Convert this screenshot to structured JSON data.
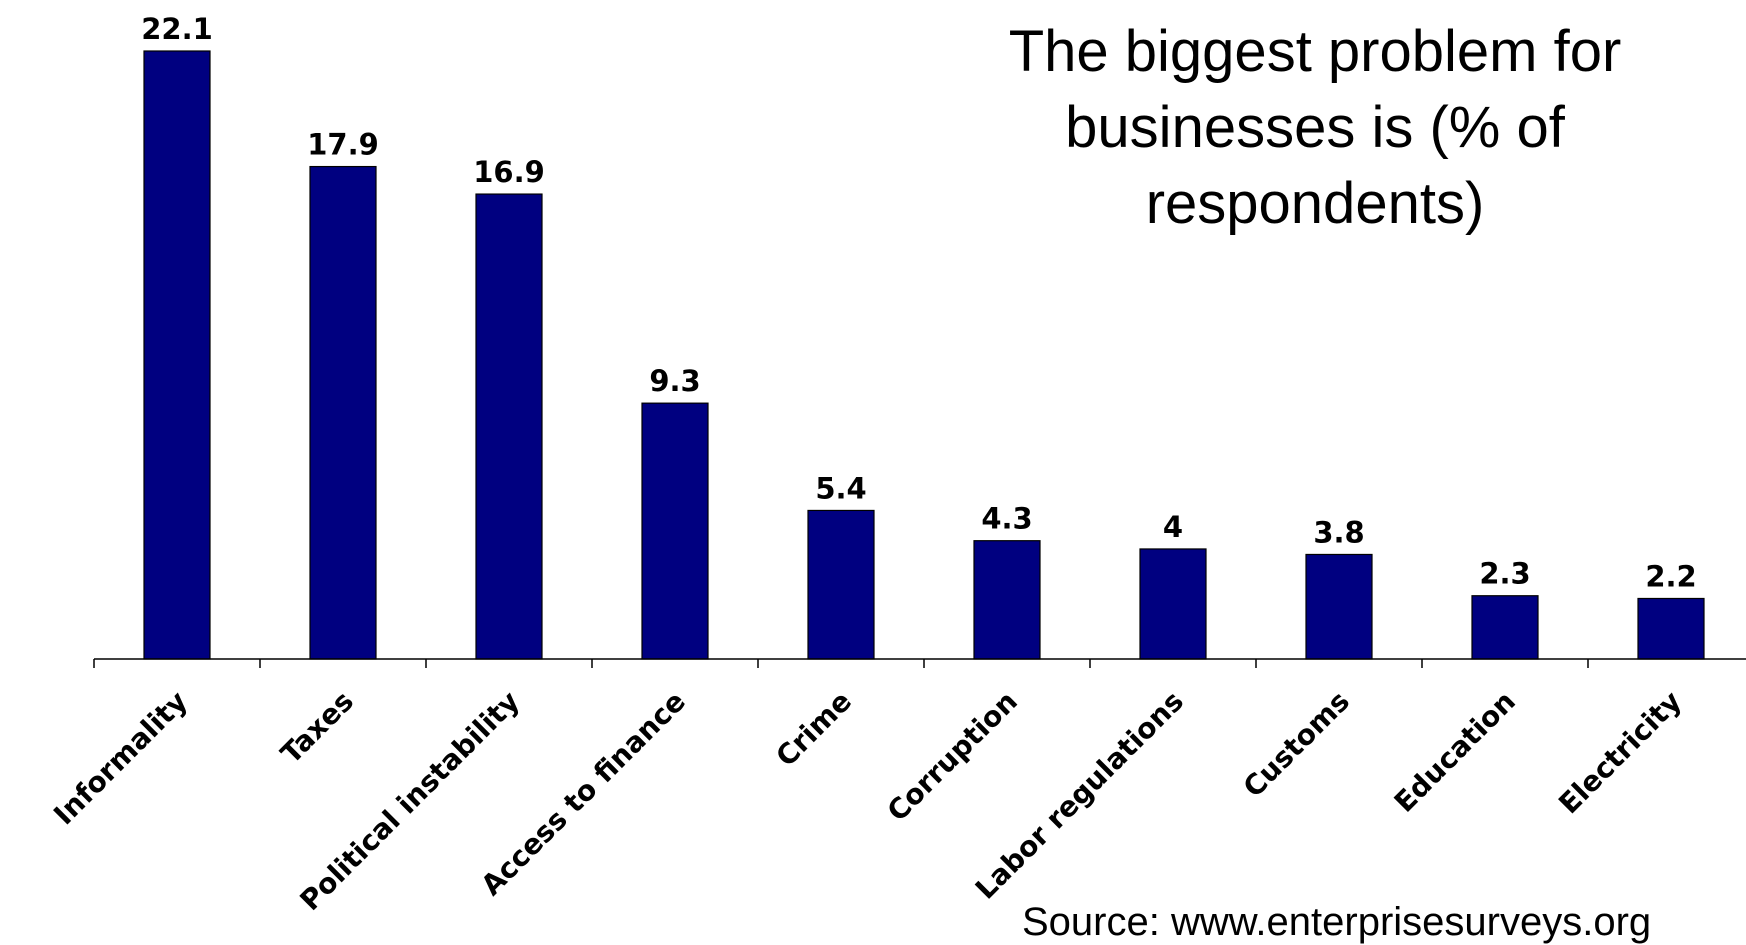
{
  "chart_data": {
    "type": "bar",
    "title_lines": [
      "The biggest problem for",
      "businesses is (% of",
      "respondents)"
    ],
    "categories": [
      "Informality",
      "Taxes",
      "Political instability",
      "Access to finance",
      "Crime",
      "Corruption",
      "Labor regulations",
      "Customs",
      "Education",
      "Electricity"
    ],
    "values": [
      22.1,
      17.9,
      16.9,
      9.3,
      5.4,
      4.3,
      4,
      3.8,
      2.3,
      2.2
    ],
    "value_labels": [
      "22.1",
      "17.9",
      "16.9",
      "9.3",
      "5.4",
      "4.3",
      "4",
      "3.8",
      "2.3",
      "2.2"
    ],
    "xlabel": "",
    "ylabel": "",
    "ylim": [
      0,
      24
    ],
    "grid": false,
    "legend": "none",
    "bar_color": "#000080"
  },
  "source_text": "Source: www.enterprisesurveys.org"
}
